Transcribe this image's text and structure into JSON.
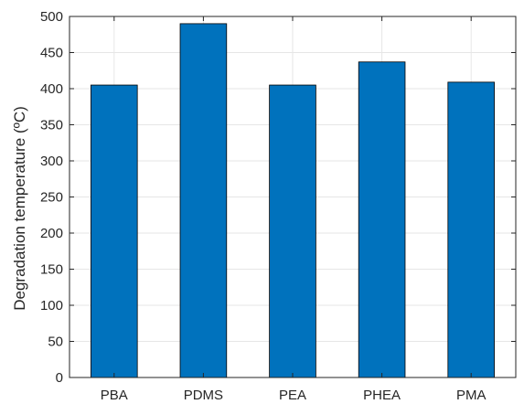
{
  "chart_data": {
    "type": "bar",
    "title": "",
    "xlabel": "",
    "ylabel": "Degradation temperature (ºC)",
    "categories": [
      "PBA",
      "PDMS",
      "PEA",
      "PHEA",
      "PMA"
    ],
    "values": [
      405,
      490,
      405,
      437,
      409
    ],
    "ylim": [
      0,
      500
    ],
    "yticks": [
      0,
      50,
      100,
      150,
      200,
      250,
      300,
      350,
      400,
      450,
      500
    ],
    "grid": true,
    "legend": "none",
    "colors": {
      "bar_fill": "#0072BD",
      "bar_edge": "#000000",
      "grid": "#e6e6e6",
      "axis": "#262626",
      "background": "#ffffff"
    }
  }
}
